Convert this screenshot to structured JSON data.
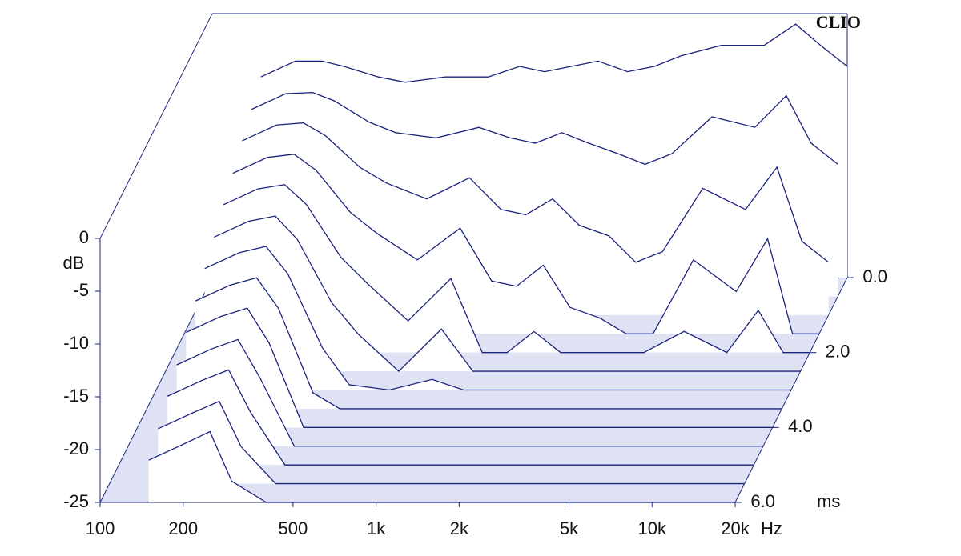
{
  "chart_data": {
    "type": "waterfall",
    "brand": "CLIO",
    "y_label": "dB",
    "x_label": "Hz",
    "t_label": "ms",
    "xscale": "log",
    "xlim": [
      100,
      20000
    ],
    "ylim": [
      -25,
      0
    ],
    "tlim": [
      0,
      6
    ],
    "color": "#1a237e",
    "xticks": [
      100,
      200,
      500,
      {
        "value": 1000,
        "label": "1k"
      },
      {
        "value": 2000,
        "label": "2k"
      },
      {
        "value": 5000,
        "label": "5k"
      },
      {
        "value": 10000,
        "label": "10k"
      },
      {
        "value": 20000,
        "label": "20k"
      }
    ],
    "yticks": [
      0,
      -5,
      -10,
      -15,
      -20,
      -25
    ],
    "tticks": [
      {
        "value": 0,
        "label": "0.0"
      },
      {
        "value": 2,
        "label": "2.0"
      },
      {
        "value": 4,
        "label": "4.0"
      },
      {
        "value": 6,
        "label": "6.0"
      }
    ],
    "x": [
      150,
      200,
      250,
      300,
      400,
      500,
      700,
      1000,
      1300,
      1600,
      2000,
      2500,
      3200,
      4000,
      5000,
      7000,
      10000,
      13000,
      16000,
      20000
    ],
    "slices": [
      {
        "t": 0,
        "values": [
          -6,
          -4.5,
          -4.5,
          -5,
          -6,
          -6.5,
          -6,
          -6,
          -5,
          -5.5,
          -5,
          -4.5,
          -5.5,
          -5,
          -4,
          -3,
          -3,
          -1,
          -3,
          -5
        ]
      },
      {
        "t": 0.5,
        "values": [
          -7.3,
          -5.8,
          -5.7,
          -6.5,
          -8.5,
          -9.5,
          -10,
          -9,
          -10,
          -10.5,
          -9.5,
          -10.5,
          -11.5,
          -12.5,
          -11.5,
          -8,
          -9,
          -6,
          -10.5,
          -12.5
        ]
      },
      {
        "t": 1,
        "values": [
          -8.5,
          -7,
          -6.8,
          -8,
          -11,
          -12.5,
          -14,
          -12,
          -15,
          -15.5,
          -14,
          -16.5,
          -17.5,
          -20,
          -19,
          -13,
          -15,
          -11,
          -18,
          -20
        ]
      },
      {
        "t": 1.5,
        "values": [
          -9.8,
          -8.3,
          -8,
          -9.5,
          -13.5,
          -15.5,
          -18,
          -15,
          -20,
          -20.5,
          -18.5,
          -22.5,
          -23.5,
          -25,
          -25,
          -18,
          -21,
          -16,
          -25,
          -25
        ]
      },
      {
        "t": 2,
        "values": [
          -11,
          -9.5,
          -9.1,
          -11,
          -16,
          -18.5,
          -22,
          -18,
          -25,
          -25,
          -23,
          -25,
          -25,
          -25,
          -25,
          -23,
          -25,
          -21,
          -25,
          -25
        ]
      },
      {
        "t": 2.5,
        "values": [
          -12.3,
          -10.8,
          -10.3,
          -12.5,
          -18.5,
          -21.5,
          -25,
          -21,
          -25,
          -25,
          -25,
          -25,
          -25,
          -25,
          -25,
          -25,
          -25,
          -25,
          -25,
          -25
        ]
      },
      {
        "t": 3,
        "values": [
          -13.5,
          -12,
          -11.4,
          -14,
          -21,
          -24.5,
          -25,
          -24,
          -25,
          -25,
          -25,
          -25,
          -25,
          -25,
          -25,
          -25,
          -25,
          -25,
          -25,
          -25
        ]
      },
      {
        "t": 3.5,
        "values": [
          -14.8,
          -13.3,
          -12.6,
          -15.5,
          -23.5,
          -25,
          -25,
          -25,
          -25,
          -25,
          -25,
          -25,
          -25,
          -25,
          -25,
          -25,
          -25,
          -25,
          -25,
          -25
        ]
      },
      {
        "t": 4,
        "values": [
          -16,
          -14.5,
          -13.7,
          -17,
          -25,
          -25,
          -25,
          -25,
          -25,
          -25,
          -25,
          -25,
          -25,
          -25,
          -25,
          -25,
          -25,
          -25,
          -25,
          -25
        ]
      },
      {
        "t": 4.5,
        "values": [
          -17.3,
          -15.8,
          -14.9,
          -18.5,
          -25,
          -25,
          -25,
          -25,
          -25,
          -25,
          -25,
          -25,
          -25,
          -25,
          -25,
          -25,
          -25,
          -25,
          -25,
          -25
        ]
      },
      {
        "t": 5,
        "values": [
          -18.5,
          -17,
          -16,
          -20,
          -25,
          -25,
          -25,
          -25,
          -25,
          -25,
          -25,
          -25,
          -25,
          -25,
          -25,
          -25,
          -25,
          -25,
          -25,
          -25
        ]
      },
      {
        "t": 5.5,
        "values": [
          -19.8,
          -18.3,
          -17.2,
          -21.5,
          -25,
          -25,
          -25,
          -25,
          -25,
          -25,
          -25,
          -25,
          -25,
          -25,
          -25,
          -25,
          -25,
          -25,
          -25,
          -25
        ]
      },
      {
        "t": 6,
        "values": [
          -21,
          -19.5,
          -18.3,
          -23,
          -25,
          -25,
          -25,
          -25,
          -25,
          -25,
          -25,
          -25,
          -25,
          -25,
          -25,
          -25,
          -25,
          -25,
          -25,
          -25
        ]
      }
    ]
  }
}
